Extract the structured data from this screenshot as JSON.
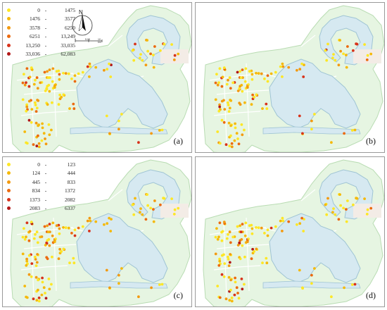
{
  "panels": [
    {
      "label": "(a)",
      "legend": [
        {
          "min": "0",
          "max": "1475",
          "color": "#fde725"
        },
        {
          "min": "1476",
          "max": "3577",
          "color": "#f5b90a"
        },
        {
          "min": "3578",
          "max": "6250",
          "color": "#f39a10"
        },
        {
          "min": "6251",
          "max": "13,249",
          "color": "#ec6a0e"
        },
        {
          "min": "13,250",
          "max": "33,035",
          "color": "#d8321a"
        },
        {
          "min": "33,036",
          "max": "62,083",
          "color": "#b21818"
        }
      ],
      "north_arrow": {
        "letter": "N"
      },
      "scale_bar": {
        "ticks": [
          "0",
          "5.05",
          "10 km"
        ]
      }
    },
    {
      "label": "(b)"
    },
    {
      "label": "(c)",
      "legend": [
        {
          "min": "0",
          "max": "123",
          "color": "#fde725"
        },
        {
          "min": "124",
          "max": "444",
          "color": "#f5b90a"
        },
        {
          "min": "445",
          "max": "833",
          "color": "#f39a10"
        },
        {
          "min": "834",
          "max": "1372",
          "color": "#ec6a0e"
        },
        {
          "min": "1373",
          "max": "2082",
          "color": "#d8321a"
        },
        {
          "min": "2083",
          "max": "6337",
          "color": "#b21818"
        }
      ]
    },
    {
      "label": "(d)"
    }
  ],
  "colors": {
    "land": "#e6f5e2",
    "land_stroke": "#b9dcb3",
    "water": "#d6e9f1",
    "water_stroke": "#9fc4d4",
    "road": "#ffffff"
  }
}
